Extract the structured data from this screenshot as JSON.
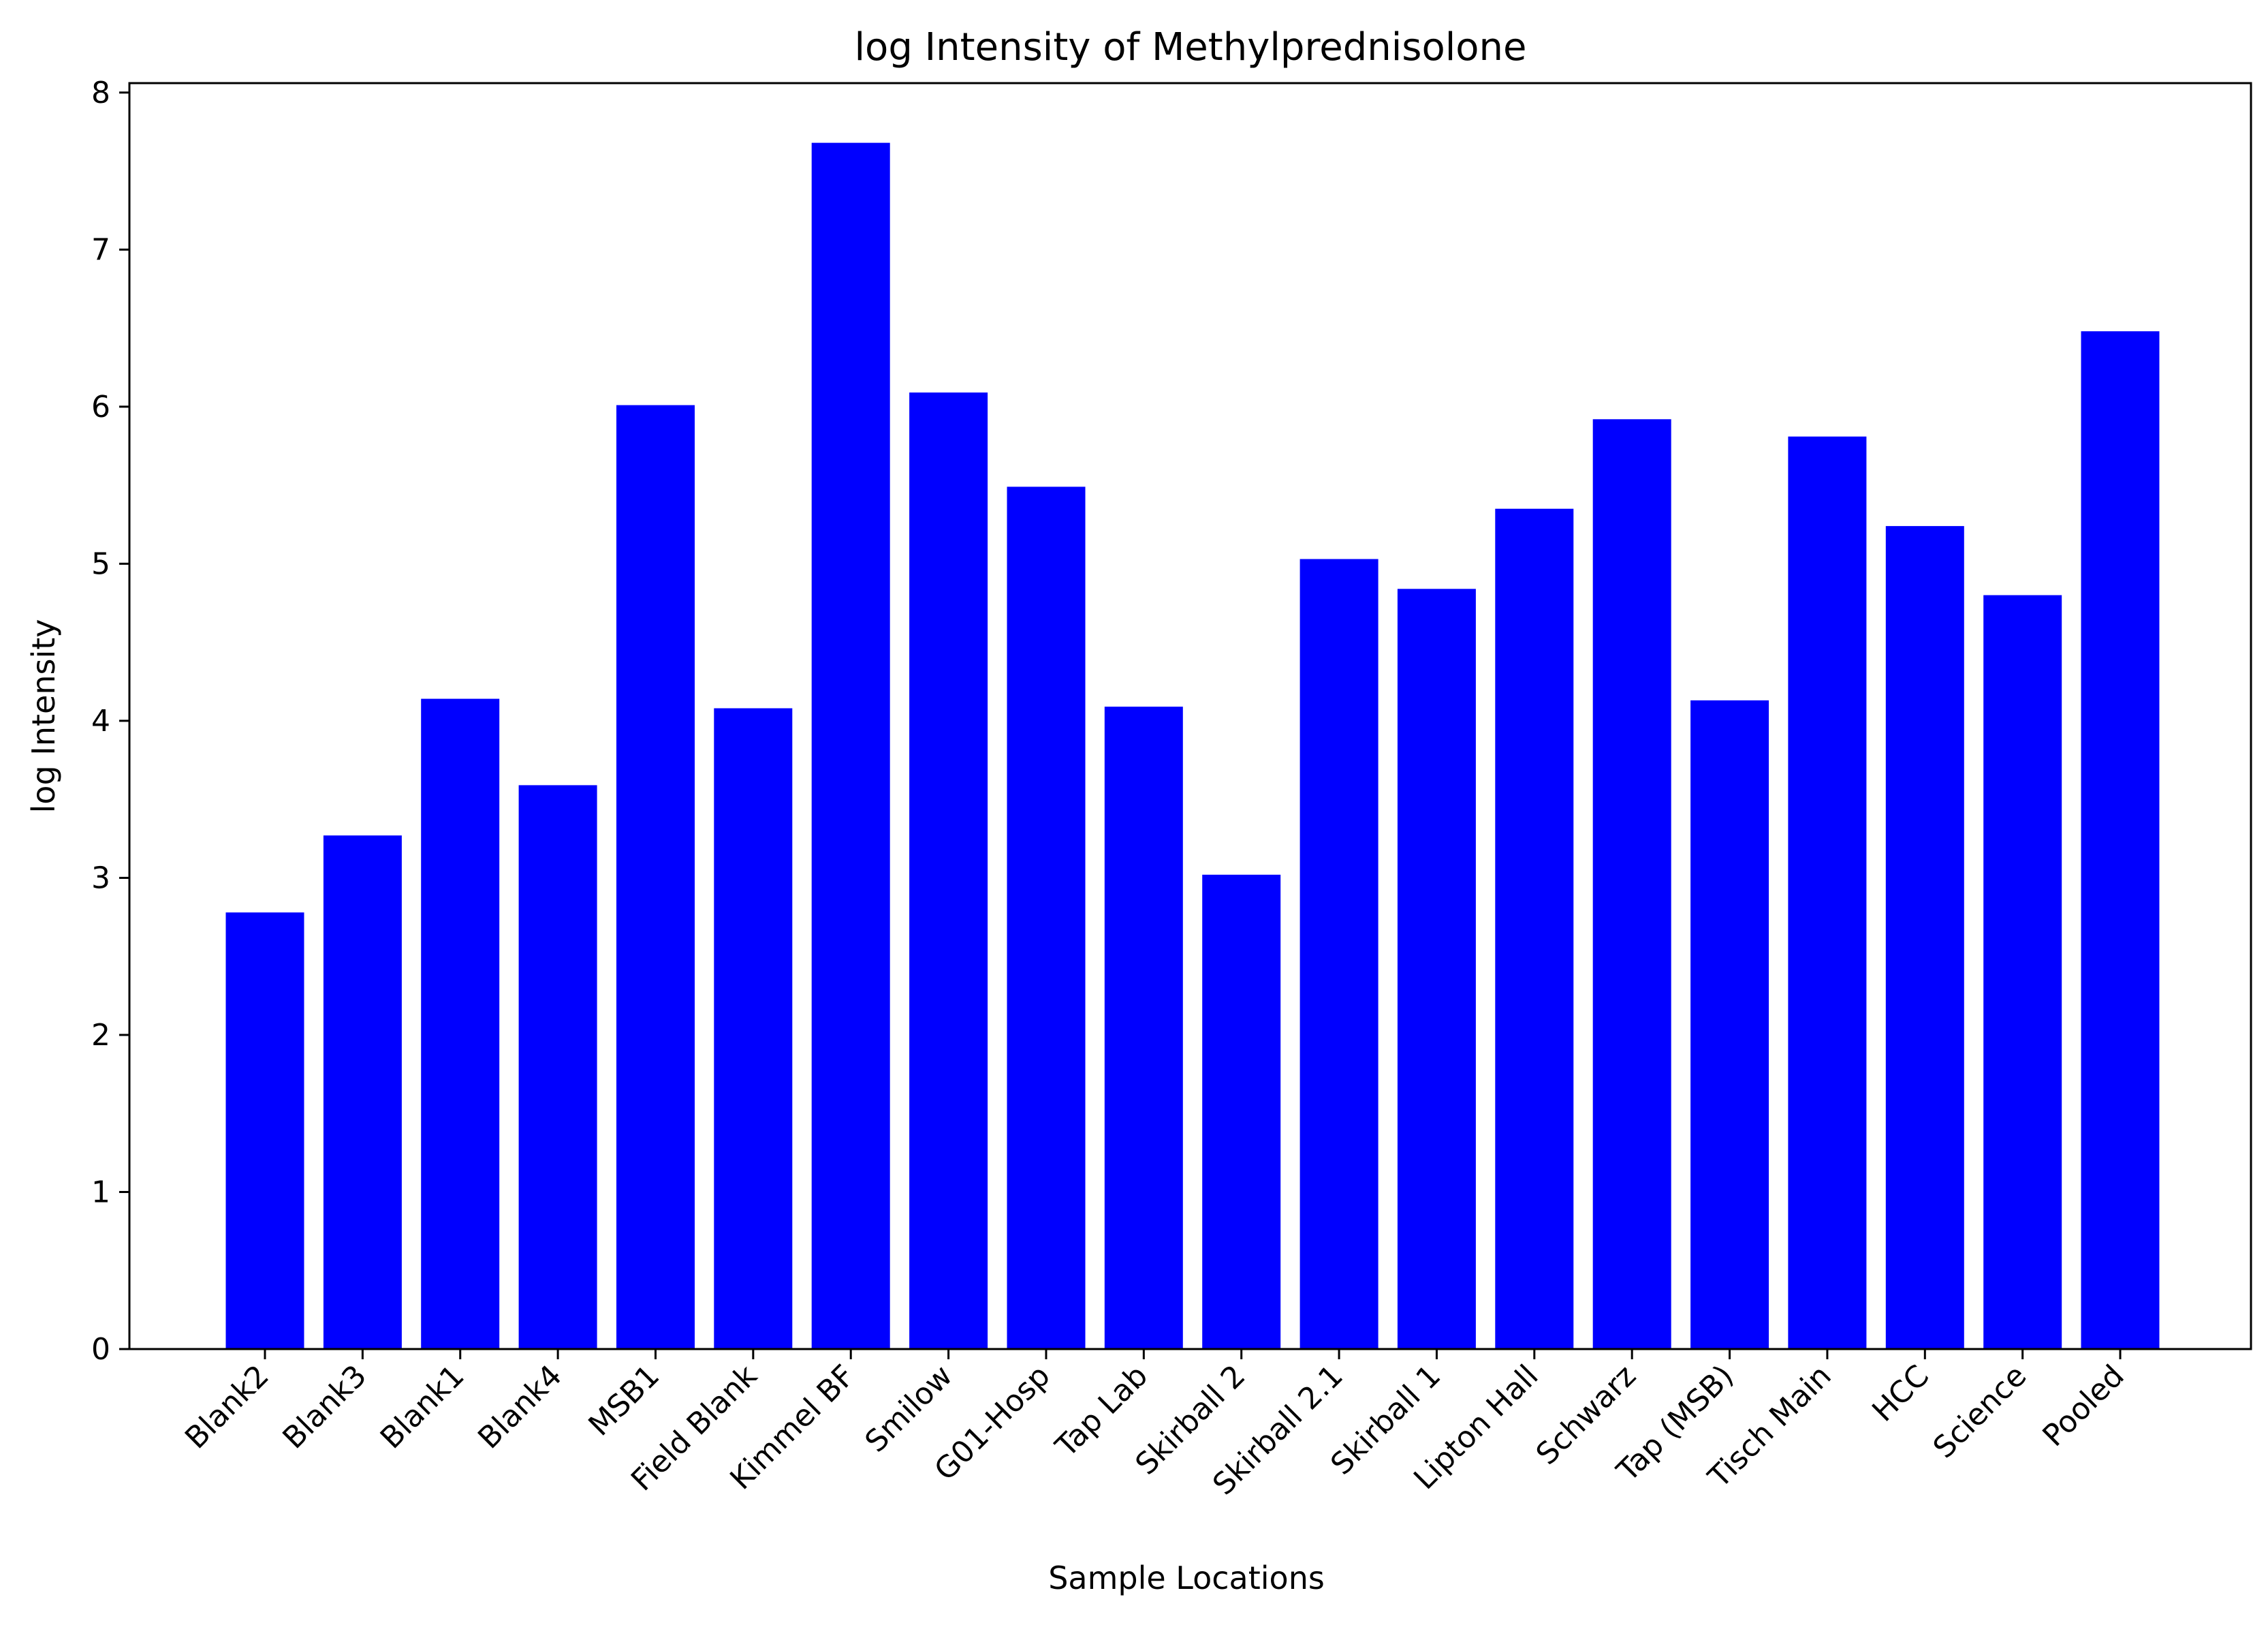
{
  "chart_data": {
    "type": "bar",
    "title": "log Intensity of Methylprednisolone",
    "xlabel": "Sample Locations",
    "ylabel": "log Intensity",
    "ylim": [
      0,
      8.06
    ],
    "yticks": [
      0,
      1,
      2,
      3,
      4,
      5,
      6,
      7,
      8
    ],
    "grid": false,
    "bar_color": "#0000ff",
    "categories": [
      "Blank2",
      "Blank3",
      "Blank1",
      "Blank4",
      "MSB1",
      "Field Blank",
      "Kimmel BF",
      "Smilow",
      "G01-Hosp",
      "Tap Lab",
      "Skirball 2",
      "Skirball 2.1",
      "Skirball 1",
      "Lipton Hall",
      "Schwarz",
      "Tap (MSB)",
      "Tisch Main",
      "HCC",
      "Science",
      "Pooled"
    ],
    "values": [
      2.78,
      3.27,
      4.14,
      3.59,
      6.01,
      4.08,
      7.68,
      6.09,
      5.49,
      4.09,
      3.02,
      5.03,
      4.84,
      5.35,
      5.92,
      4.13,
      5.81,
      5.24,
      4.8,
      6.48
    ]
  }
}
